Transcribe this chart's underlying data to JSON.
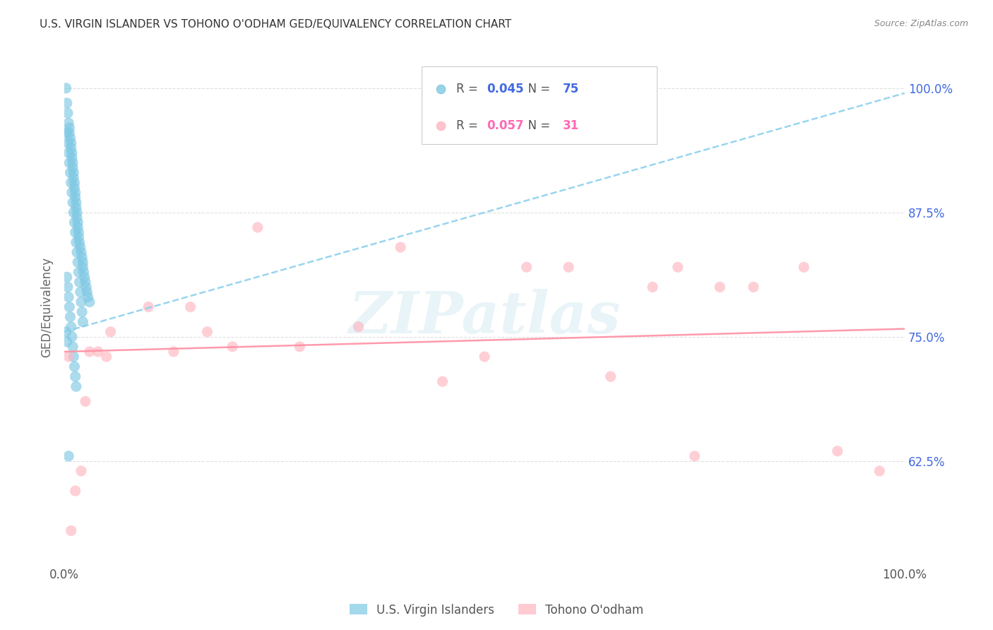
{
  "title": "U.S. VIRGIN ISLANDER VS TOHONO O'ODHAM GED/EQUIVALENCY CORRELATION CHART",
  "source": "Source: ZipAtlas.com",
  "ylabel": "GED/Equivalency",
  "xlim": [
    0.0,
    1.0
  ],
  "ylim": [
    0.52,
    1.04
  ],
  "xticks": [
    0.0,
    0.25,
    0.5,
    0.75,
    1.0
  ],
  "xticklabels": [
    "0.0%",
    "",
    "",
    "",
    "100.0%"
  ],
  "yticks": [
    0.625,
    0.75,
    0.875,
    1.0
  ],
  "yticklabels": [
    "62.5%",
    "75.0%",
    "87.5%",
    "100.0%"
  ],
  "blue_color": "#7ec8e3",
  "pink_color": "#ffb6c1",
  "blue_line_color": "#87CEEB",
  "pink_line_color": "#ff8fa3",
  "legend_r_blue": "0.045",
  "legend_n_blue": "75",
  "legend_r_pink": "0.057",
  "legend_n_pink": "31",
  "blue_scatter_x": [
    0.002,
    0.003,
    0.004,
    0.005,
    0.006,
    0.006,
    0.007,
    0.008,
    0.008,
    0.009,
    0.009,
    0.01,
    0.01,
    0.011,
    0.011,
    0.012,
    0.012,
    0.013,
    0.013,
    0.014,
    0.014,
    0.015,
    0.015,
    0.016,
    0.016,
    0.017,
    0.017,
    0.018,
    0.019,
    0.02,
    0.021,
    0.022,
    0.022,
    0.023,
    0.024,
    0.025,
    0.026,
    0.027,
    0.028,
    0.03,
    0.003,
    0.004,
    0.005,
    0.006,
    0.007,
    0.008,
    0.009,
    0.01,
    0.011,
    0.012,
    0.013,
    0.014,
    0.015,
    0.016,
    0.017,
    0.018,
    0.019,
    0.02,
    0.021,
    0.022,
    0.003,
    0.004,
    0.005,
    0.006,
    0.007,
    0.008,
    0.009,
    0.01,
    0.011,
    0.012,
    0.013,
    0.014,
    0.002,
    0.003,
    0.005
  ],
  "blue_scatter_y": [
    1.0,
    0.985,
    0.975,
    0.965,
    0.96,
    0.955,
    0.95,
    0.945,
    0.94,
    0.935,
    0.93,
    0.925,
    0.92,
    0.915,
    0.91,
    0.905,
    0.9,
    0.895,
    0.89,
    0.885,
    0.88,
    0.875,
    0.87,
    0.865,
    0.86,
    0.855,
    0.85,
    0.845,
    0.84,
    0.835,
    0.83,
    0.825,
    0.82,
    0.815,
    0.81,
    0.805,
    0.8,
    0.795,
    0.79,
    0.785,
    0.955,
    0.945,
    0.935,
    0.925,
    0.915,
    0.905,
    0.895,
    0.885,
    0.875,
    0.865,
    0.855,
    0.845,
    0.835,
    0.825,
    0.815,
    0.805,
    0.795,
    0.785,
    0.775,
    0.765,
    0.81,
    0.8,
    0.79,
    0.78,
    0.77,
    0.76,
    0.75,
    0.74,
    0.73,
    0.72,
    0.71,
    0.7,
    0.755,
    0.745,
    0.63
  ],
  "pink_scatter_x": [
    0.008,
    0.013,
    0.02,
    0.03,
    0.04,
    0.055,
    0.1,
    0.13,
    0.17,
    0.2,
    0.23,
    0.28,
    0.35,
    0.4,
    0.45,
    0.5,
    0.55,
    0.6,
    0.65,
    0.7,
    0.73,
    0.78,
    0.82,
    0.88,
    0.92,
    0.97,
    0.005,
    0.025,
    0.05,
    0.15,
    0.75
  ],
  "pink_scatter_y": [
    0.555,
    0.595,
    0.615,
    0.735,
    0.735,
    0.755,
    0.78,
    0.735,
    0.755,
    0.74,
    0.86,
    0.74,
    0.76,
    0.84,
    0.705,
    0.73,
    0.82,
    0.82,
    0.71,
    0.8,
    0.82,
    0.8,
    0.8,
    0.82,
    0.635,
    0.615,
    0.73,
    0.685,
    0.73,
    0.78,
    0.63
  ],
  "blue_trendline_x": [
    0.0,
    1.0
  ],
  "blue_trendline_y": [
    0.755,
    0.995
  ],
  "pink_trendline_x": [
    0.0,
    1.0
  ],
  "pink_trendline_y": [
    0.735,
    0.758
  ],
  "watermark": "ZIPatlas",
  "background_color": "#ffffff",
  "grid_color": "#e0e0e0",
  "title_color": "#333333",
  "source_color": "#888888",
  "ylabel_color": "#666666",
  "right_tick_color": "#4169E1",
  "legend_blue_r_color": "#4169E1",
  "legend_blue_n_color": "#4169E1",
  "legend_pink_r_color": "#ff69b4",
  "legend_pink_n_color": "#ff69b4"
}
